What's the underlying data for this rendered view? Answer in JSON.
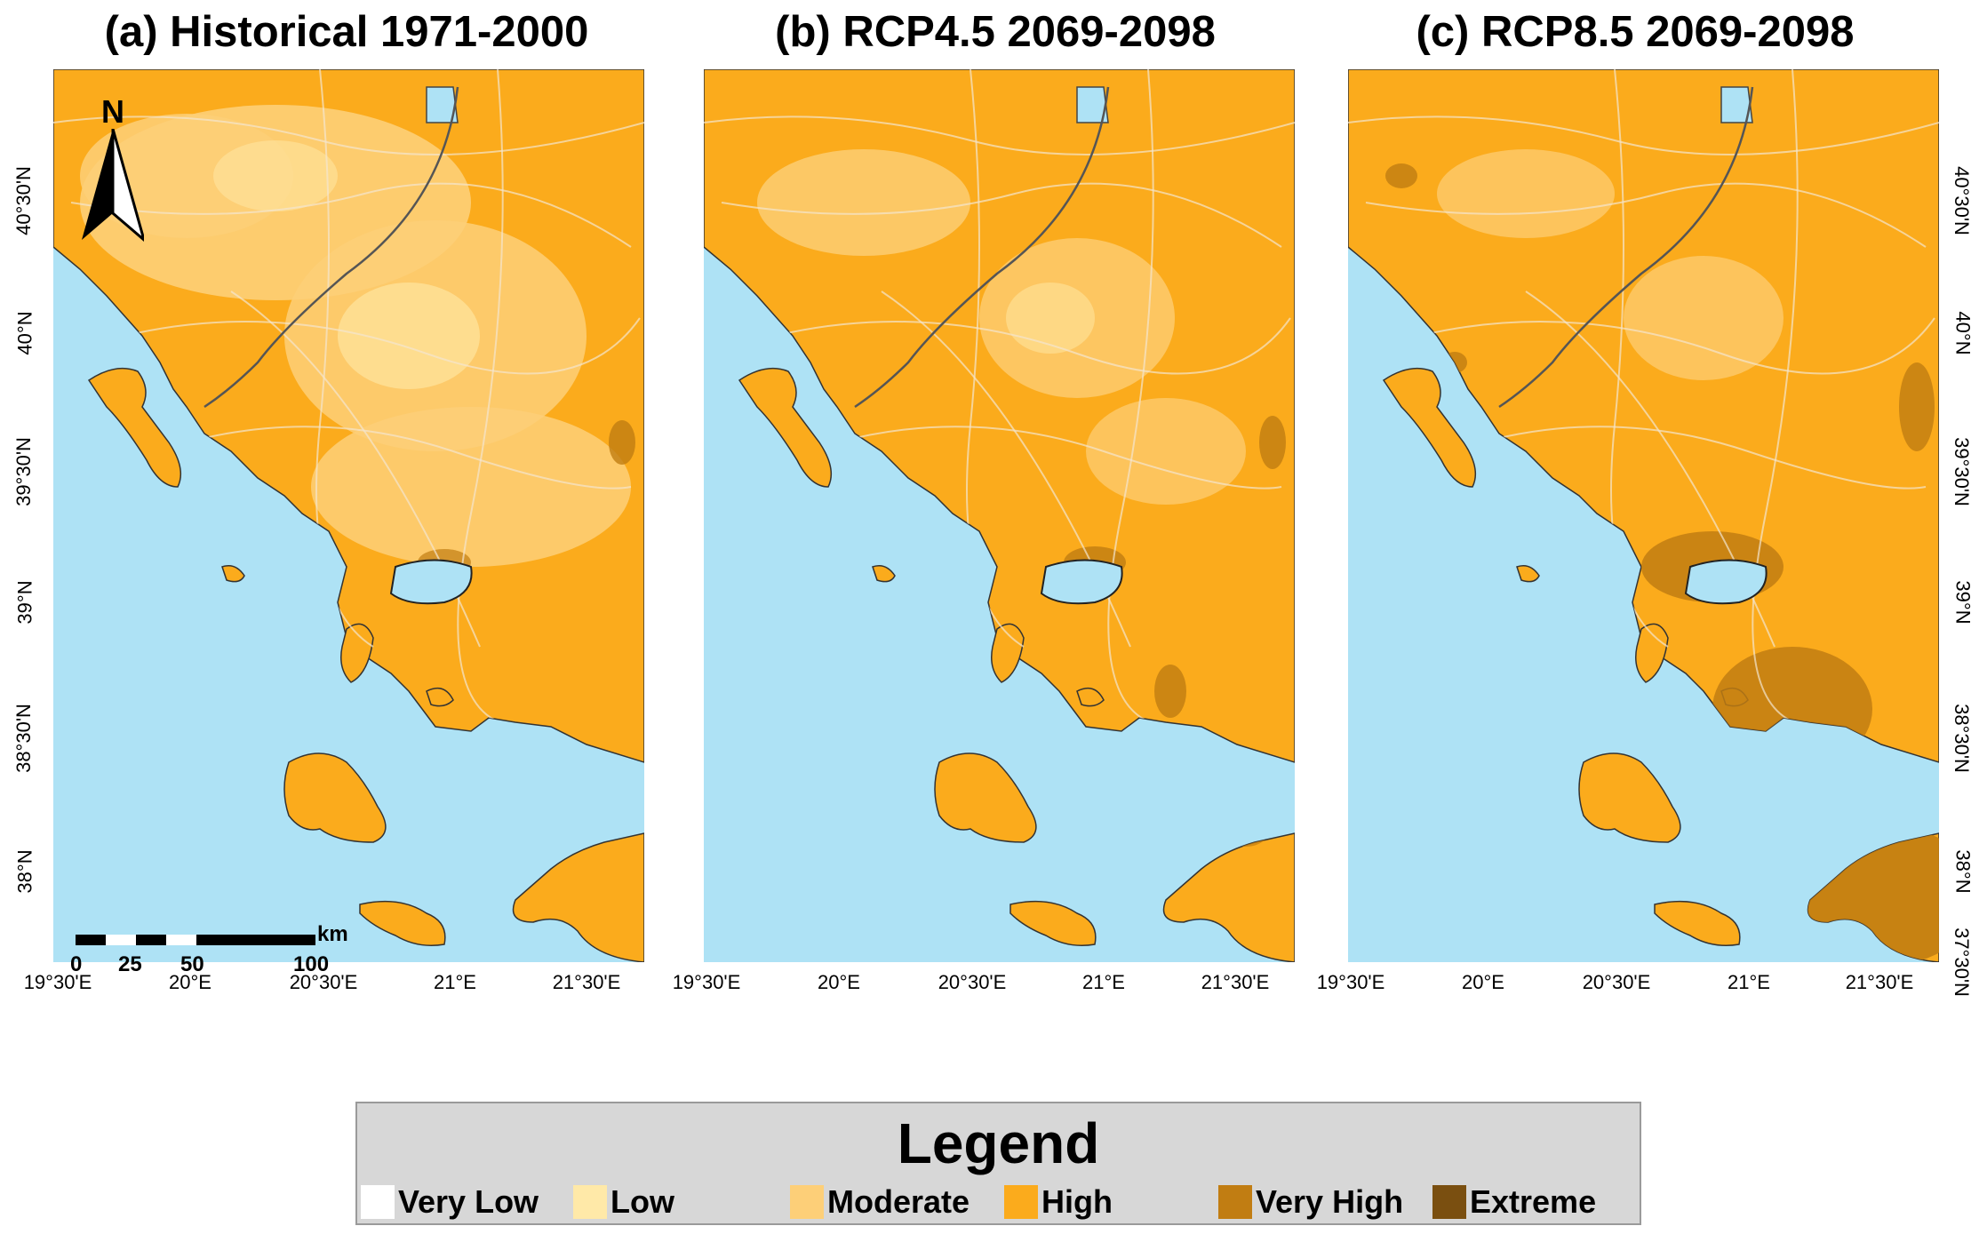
{
  "panels": [
    {
      "title": "(a) Historical 1971-2000",
      "scenario": "historical"
    },
    {
      "title": "(b) RCP4.5 2069-2098",
      "scenario": "rcp45"
    },
    {
      "title": "(c) RCP8.5 2069-2098",
      "scenario": "rcp85"
    }
  ],
  "x_ticks": [
    "19°30'E",
    "20°E",
    "20°30'E",
    "21°E",
    "21°30'E"
  ],
  "y_ticks_left": [
    "40°30'N",
    "40°N",
    "39°30'N",
    "39°N",
    "38°30'N",
    "38°N"
  ],
  "y_ticks_right": [
    "40°30'N",
    "40°N",
    "39°30'N",
    "39°N",
    "38°30'N",
    "38°N",
    "37°30'N"
  ],
  "north_arrow": {
    "label": "N",
    "icon": "north-arrow-icon"
  },
  "scale_bar": {
    "unit": "km",
    "labels": [
      "0",
      "25",
      "50",
      "100"
    ]
  },
  "legend": {
    "title": "Legend",
    "items": [
      {
        "label": "Very Low",
        "color": "#ffffff"
      },
      {
        "label": "Low",
        "color": "#ffe9a8"
      },
      {
        "label": "Moderate",
        "color": "#fdcf78"
      },
      {
        "label": "High",
        "color": "#fbab1c"
      },
      {
        "label": "Very High",
        "color": "#c17d12"
      },
      {
        "label": "Extreme",
        "color": "#7a4f10"
      }
    ]
  },
  "colors": {
    "sea": "#aee2f5",
    "border": "#555555",
    "roads": "#f3e6cf"
  }
}
